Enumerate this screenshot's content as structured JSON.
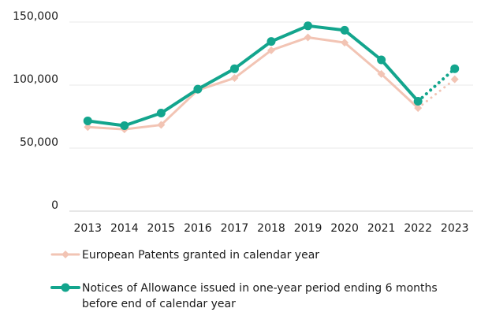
{
  "chart_data": {
    "type": "line",
    "title": "",
    "xlabel": "",
    "ylabel": "",
    "x": [
      "2013",
      "2014",
      "2015",
      "2016",
      "2017",
      "2018",
      "2019",
      "2020",
      "2021",
      "2022",
      "2023"
    ],
    "ylim": [
      0,
      150000
    ],
    "yticks": [
      0,
      50000,
      100000,
      150000
    ],
    "ytick_labels": [
      "0",
      "50,000",
      "100,000",
      "150,000"
    ],
    "grid": "horizontal",
    "legend_position": "bottom",
    "series": [
      {
        "name": "European Patents granted in calendar year",
        "color": "#f2c4b4",
        "marker": "diamond",
        "values": [
          66700,
          64900,
          68400,
          96000,
          105600,
          127600,
          137800,
          133700,
          108800,
          81800,
          104600
        ],
        "dotted_last_segment": true
      },
      {
        "name": "Notices of Allowance issued in one-year period ending 6 months before end of calendar year",
        "color": "#13a58d",
        "marker": "circle",
        "values": [
          71600,
          67800,
          77800,
          96800,
          113000,
          134600,
          147000,
          143500,
          120000,
          87200,
          113000
        ],
        "dotted_last_segment": true
      }
    ]
  }
}
